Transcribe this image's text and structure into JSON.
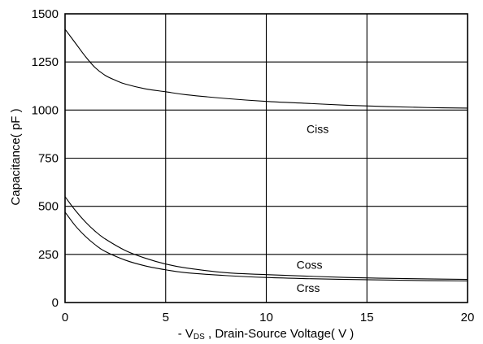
{
  "chart_data": {
    "type": "line",
    "xlabel": "- VDS , Drain-Source Voltage( V )",
    "xlabel_parts": {
      "prefix": "- V",
      "subscript": "DS",
      "suffix": " , Drain-Source Voltage( V )"
    },
    "ylabel": "Capacitance( pF )",
    "xlim": [
      0,
      20
    ],
    "ylim": [
      0,
      1500
    ],
    "xticks": [
      "0",
      "5",
      "10",
      "15",
      "20"
    ],
    "yticks": [
      "0",
      "250",
      "500",
      "750",
      "1000",
      "1250",
      "1500"
    ],
    "grid": true,
    "legend": "inline labels",
    "series": [
      {
        "name": "Ciss",
        "x": [
          0,
          0.5,
          1,
          1.5,
          2,
          2.5,
          3,
          4,
          5,
          6,
          8,
          10,
          12,
          14,
          16,
          18,
          20
        ],
        "values": [
          1420,
          1350,
          1280,
          1220,
          1180,
          1155,
          1135,
          1110,
          1095,
          1080,
          1060,
          1045,
          1035,
          1025,
          1018,
          1013,
          1010
        ]
      },
      {
        "name": "Coss",
        "x": [
          0,
          0.5,
          1,
          1.5,
          2,
          3,
          4,
          5,
          6,
          8,
          10,
          12,
          14,
          16,
          18,
          20
        ],
        "values": [
          550,
          480,
          420,
          370,
          330,
          270,
          230,
          200,
          180,
          155,
          145,
          137,
          130,
          126,
          123,
          120
        ]
      },
      {
        "name": "Crss",
        "x": [
          0,
          0.5,
          1,
          1.5,
          2,
          3,
          4,
          5,
          6,
          8,
          10,
          12,
          14,
          16,
          18,
          20
        ],
        "values": [
          470,
          400,
          345,
          300,
          265,
          220,
          190,
          170,
          155,
          140,
          130,
          124,
          120,
          117,
          114,
          112
        ]
      }
    ]
  }
}
